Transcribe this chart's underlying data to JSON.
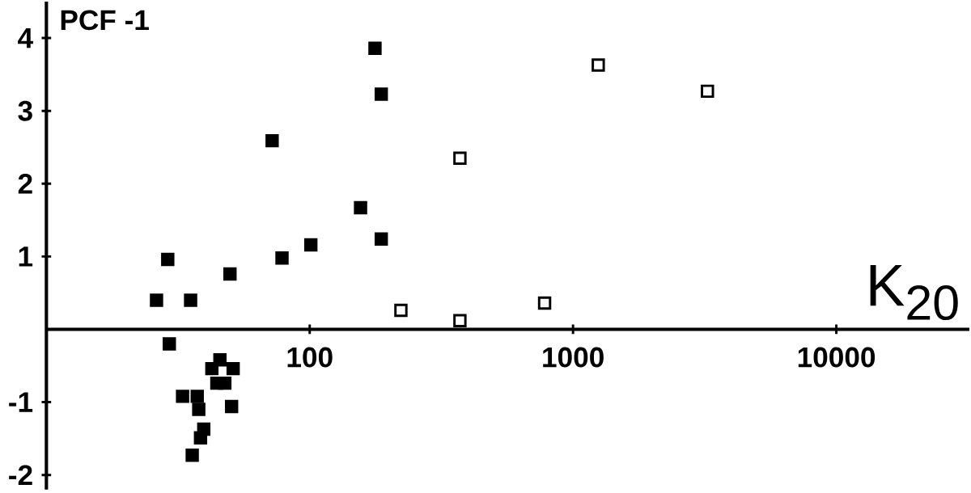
{
  "chart_data": {
    "type": "scatter",
    "xlabel": "K$_{20}$",
    "ylabel": "PCF -1",
    "log": "x",
    "marker": "square",
    "grid": false,
    "xlim": [
      10,
      32000
    ],
    "ylim": [
      -2.2,
      4.5
    ],
    "xticks": [
      100,
      1000,
      10000
    ],
    "yticks": [
      -2,
      -1,
      1,
      2,
      3,
      4
    ],
    "series": [
      {
        "color": "#000000",
        "x": [
          28.9,
          49.8,
          78.5,
          101,
          72,
          156,
          177,
          187,
          187,
          26.2,
          35.3,
          29.3,
          45.6,
          42.5,
          51.2,
          44.4,
          47.6,
          32.9,
          37.4,
          37.9,
          50.5,
          39.6,
          38.5,
          35.8
        ],
        "values": [
          0.96,
          0.76,
          0.98,
          1.16,
          2.59,
          1.67,
          3.86,
          3.23,
          1.24,
          0.4,
          0.4,
          -0.2,
          -0.42,
          -0.54,
          -0.54,
          -0.74,
          -0.74,
          -0.92,
          -0.92,
          -1.1,
          -1.06,
          -1.37,
          -1.49,
          -1.73
        ]
      },
      {
        "color": "#ffffff",
        "x": [
          372,
          1247,
          3240,
          780,
          222,
          372
        ],
        "values": [
          2.35,
          3.63,
          3.27,
          0.36,
          0.26,
          0.12
        ]
      }
    ]
  }
}
